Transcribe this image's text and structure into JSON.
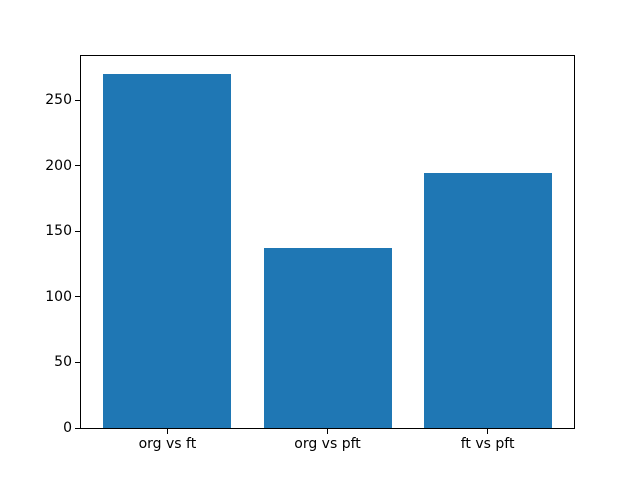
{
  "colors": {
    "bar": "#1f77b4",
    "spine": "#000000",
    "text": "#000000",
    "background": "#ffffff"
  },
  "chart_data": {
    "type": "bar",
    "categories": [
      "org vs ft",
      "org vs pft",
      "ft vs pft"
    ],
    "values": [
      270,
      137,
      194
    ],
    "title": "",
    "xlabel": "",
    "ylabel": "",
    "ylim": [
      0,
      283.5
    ],
    "xlim": [
      -0.54,
      2.54
    ],
    "bar_width": 0.8,
    "yticks": [
      0,
      50,
      100,
      150,
      200,
      250
    ],
    "bar_color": "#1f77b4",
    "grid": false,
    "legend": null
  }
}
